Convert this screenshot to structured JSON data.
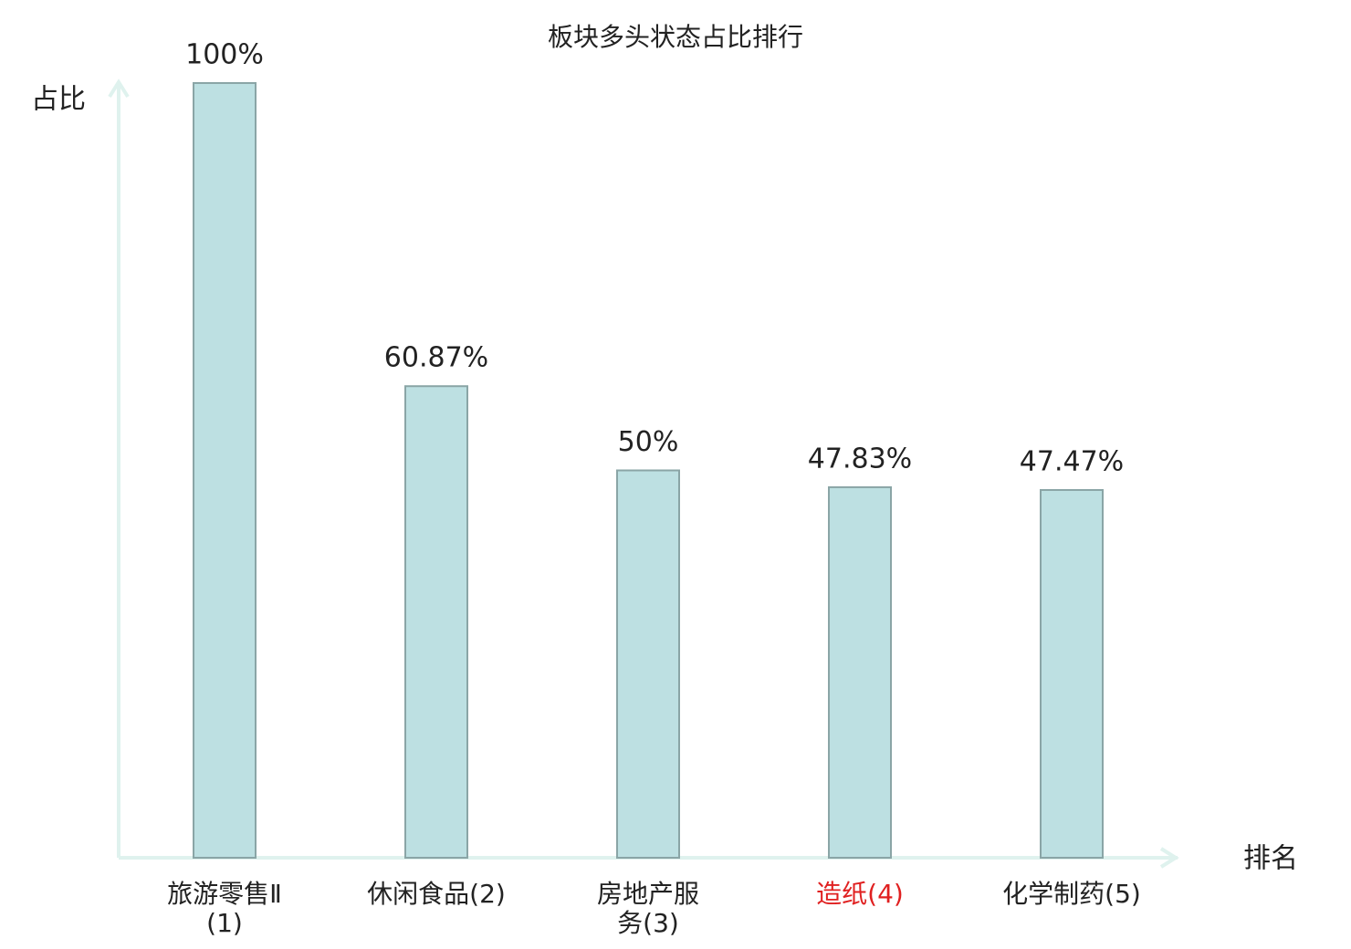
{
  "chart_data": {
    "type": "bar",
    "title": "板块多头状态占比排行",
    "y_label": "占比",
    "x_label": "排名",
    "categories": [
      "旅游零售Ⅱ(1)",
      "休闲食品(2)",
      "房地产服务(3)",
      "造纸(4)",
      "化学制药(5)"
    ],
    "category_colors": [
      "#222222",
      "#222222",
      "#222222",
      "#e02020",
      "#222222"
    ],
    "values": [
      100,
      60.87,
      50,
      47.83,
      47.47
    ],
    "value_labels": [
      "100%",
      "60.87%",
      "50%",
      "47.83%",
      "47.47%"
    ],
    "color": "#bde0e2",
    "edge_color": "#8aa5a6",
    "ylim": [
      0,
      100
    ]
  }
}
